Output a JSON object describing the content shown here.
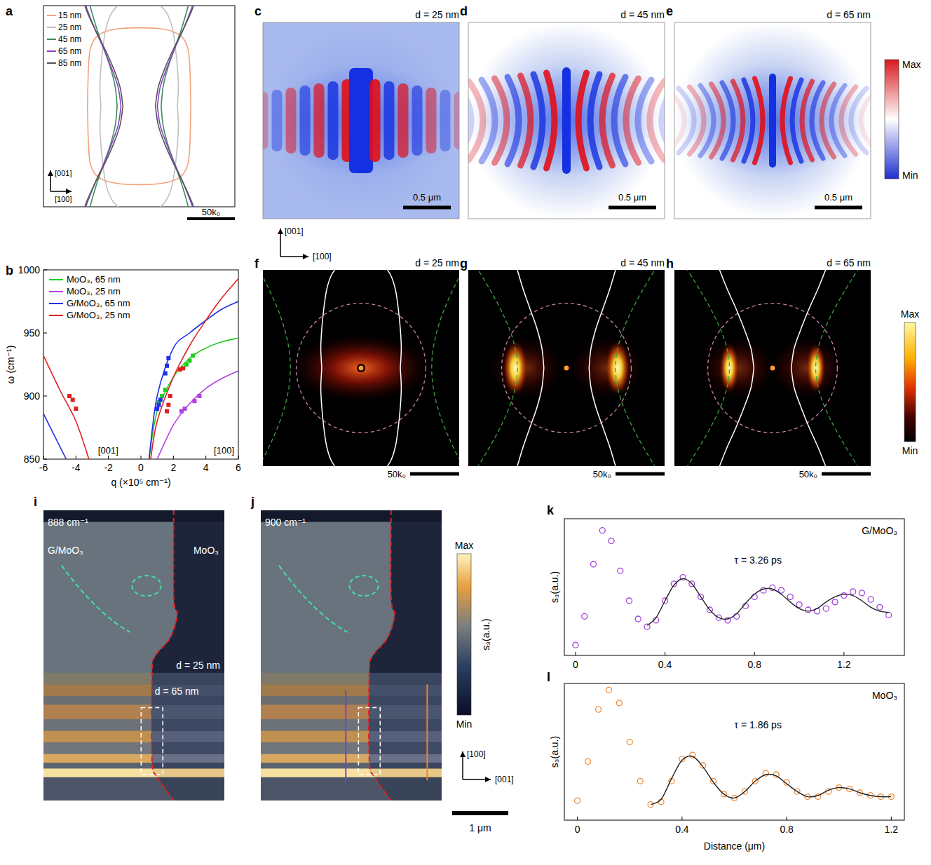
{
  "panels": {
    "a": {
      "letter": "a",
      "xlim": [
        -100,
        100
      ],
      "ylim": [
        -105,
        105
      ],
      "x_axis": "[100]",
      "y_axis": "[001]",
      "scale_bar": "50k₀",
      "curves": [
        {
          "name": "15 nm",
          "color": "#f4a27c",
          "kx": [
            0,
            20,
            35,
            45,
            51,
            53,
            54
          ],
          "kz": [
            82,
            81,
            78,
            72,
            60,
            40,
            0
          ]
        },
        {
          "name": "25 nm",
          "color": "#c0c0c0",
          "kx": [
            0,
            10,
            22,
            30,
            35,
            38,
            40,
            41,
            40
          ],
          "kz": [
            111,
            110,
            105,
            95,
            80,
            60,
            40,
            20,
            0
          ]
        },
        {
          "name": "45 nm",
          "color": "#3a8f5a",
          "kx": [
            23,
            25,
            30,
            37,
            44,
            50,
            54
          ],
          "kz": [
            0,
            20,
            40,
            60,
            80,
            100,
            115
          ]
        },
        {
          "name": "65 nm",
          "color": "#8a3fc8",
          "kx": [
            19,
            22,
            29,
            37,
            46,
            54,
            59
          ],
          "kz": [
            0,
            20,
            40,
            60,
            80,
            100,
            115
          ]
        },
        {
          "name": "85 nm",
          "color": "#555555",
          "kx": [
            17,
            20,
            27,
            36,
            46,
            55,
            60
          ],
          "kz": [
            0,
            20,
            40,
            60,
            80,
            100,
            115
          ]
        }
      ]
    },
    "c": {
      "letter": "c",
      "title": "d = 25 nm",
      "scale_bar": "0.5 μm"
    },
    "d": {
      "letter": "d",
      "title": "d = 45 nm",
      "scale_bar": "0.5 μm"
    },
    "e": {
      "letter": "e",
      "title": "d = 65 nm",
      "scale_bar": "0.5 μm"
    },
    "field_colorbar": {
      "max": "Max",
      "min": "Min"
    },
    "field_axes": {
      "up": "[001]",
      "right": "[100]"
    },
    "f": {
      "letter": "f",
      "title": "d = 25 nm",
      "scale_bar": "50k₀"
    },
    "g": {
      "letter": "g",
      "title": "d = 45 nm",
      "scale_bar": "50k₀"
    },
    "h": {
      "letter": "h",
      "title": "d = 65 nm",
      "scale_bar": "50k₀"
    },
    "fft_colorbar": {
      "max": "Max",
      "min": "Min"
    },
    "i": {
      "letter": "i",
      "frequency": "888 cm⁻¹",
      "left_label": "G/MoO₃",
      "right_label": "MoO₃",
      "thin_label": "d = 25 nm",
      "thick_label": "d = 65 nm"
    },
    "j": {
      "letter": "j",
      "frequency": "900 cm⁻¹"
    },
    "snom_colorbar": {
      "title": "s₃(a.u.)",
      "max": "Max",
      "min": "Min"
    },
    "image_axes": {
      "up": "[100]",
      "right": "[001]",
      "scale_bar": "1 μm"
    }
  },
  "chart_data": [
    {
      "panel": "b",
      "type": "line",
      "xlabel": "q (×10⁵ cm⁻¹)",
      "ylabel": "ω (cm⁻¹)",
      "xlim": [
        -6,
        6
      ],
      "ylim": [
        850,
        1000
      ],
      "xticks": [
        -6,
        -4,
        -2,
        0,
        2,
        4,
        6
      ],
      "yticks": [
        850,
        900,
        950,
        1000
      ],
      "legend": "upper left",
      "annotations": [
        "[001]",
        "[100]"
      ],
      "series": [
        {
          "name": "MoO₃, 65 nm",
          "type": "line",
          "line_style": "solid",
          "color": "#22cc22",
          "x": [
            0.5,
            1,
            2,
            3,
            4,
            5,
            6
          ],
          "values": [
            850,
            888,
            915,
            930,
            938,
            943,
            946
          ]
        },
        {
          "name": "MoO₃, 25 nm",
          "type": "line",
          "line_style": "solid",
          "color": "#b040e0",
          "x": [
            1,
            2,
            3,
            4,
            5,
            6
          ],
          "values": [
            850,
            877,
            894,
            906,
            914,
            920
          ]
        },
        {
          "name": "G/MoO₃, 65 nm",
          "type": "line",
          "line_style": "solid",
          "color": "#2030e8",
          "x": [
            -6,
            -5.3,
            -4.6,
            0,
            0.5,
            1,
            2,
            3,
            4,
            5,
            6
          ],
          "values": [
            886,
            868,
            850,
            null,
            850,
            900,
            938,
            950,
            960,
            969,
            975
          ]
        },
        {
          "name": "G/MoO₃, 25 nm",
          "type": "line",
          "line_style": "solid",
          "color": "#e02020",
          "x": [
            -6,
            -5,
            -4,
            -3.2,
            0,
            0.6,
            1,
            2,
            3,
            4,
            5,
            6
          ],
          "values": [
            932,
            905,
            880,
            850,
            null,
            850,
            880,
            915,
            940,
            960,
            978,
            993
          ]
        },
        {
          "type": "scatter",
          "marker": "square",
          "color": "#22cc22",
          "x": [
            1.1,
            1.3,
            1.5,
            2.8,
            3.0,
            3.2
          ],
          "values": [
            895,
            900,
            905,
            925,
            928,
            932
          ]
        },
        {
          "type": "scatter",
          "marker": "square",
          "color": "#b040e0",
          "x": [
            2.5,
            2.7,
            3.3,
            3.6
          ],
          "values": [
            888,
            890,
            896,
            900
          ]
        },
        {
          "type": "scatter",
          "marker": "square",
          "color": "#2030e8",
          "x": [
            1.0,
            1.1,
            1.2,
            1.5,
            1.6,
            1.7
          ],
          "values": [
            890,
            893,
            897,
            918,
            924,
            930
          ]
        },
        {
          "type": "scatter",
          "marker": "square",
          "color": "#e02020",
          "x": [
            -4.4,
            -4.2,
            -4.0,
            1.6,
            1.7,
            1.8,
            2.4,
            2.6
          ],
          "values": [
            900,
            897,
            890,
            888,
            893,
            900,
            921,
            922
          ]
        }
      ]
    },
    {
      "panel": "k",
      "type": "scatter",
      "title": "G/MoO₃",
      "ylabel": "s₃(a.u.)",
      "xlim": [
        -0.05,
        1.47
      ],
      "ylim": [
        0,
        1.05
      ],
      "xticks": [
        0,
        0.4,
        0.8,
        1.2
      ],
      "tick_labels": "x",
      "annotations": [
        "τ = 3.26 ps"
      ],
      "series": [
        {
          "type": "scatter",
          "marker": "circle",
          "color": "#a040e0",
          "x": [
            0,
            0.04,
            0.08,
            0.12,
            0.16,
            0.2,
            0.24,
            0.28,
            0.32,
            0.36,
            0.4,
            0.44,
            0.48,
            0.52,
            0.56,
            0.6,
            0.64,
            0.68,
            0.72,
            0.76,
            0.8,
            0.84,
            0.88,
            0.92,
            0.96,
            1,
            1.04,
            1.08,
            1.12,
            1.16,
            1.2,
            1.24,
            1.28,
            1.32,
            1.36,
            1.4
          ],
          "values": [
            0.08,
            0.3,
            0.7,
            0.96,
            0.88,
            0.65,
            0.42,
            0.28,
            0.22,
            0.27,
            0.42,
            0.55,
            0.6,
            0.55,
            0.45,
            0.35,
            0.29,
            0.27,
            0.3,
            0.38,
            0.45,
            0.5,
            0.52,
            0.5,
            0.45,
            0.39,
            0.35,
            0.34,
            0.36,
            0.41,
            0.46,
            0.49,
            0.48,
            0.43,
            0.37,
            0.31
          ]
        },
        {
          "type": "line",
          "line_style": "solid",
          "color": "#222222",
          "x": [
            0.32,
            0.36,
            0.4,
            0.44,
            0.48,
            0.52,
            0.56,
            0.6,
            0.64,
            0.68,
            0.72,
            0.76,
            0.8,
            0.84,
            0.88,
            0.92,
            0.96,
            1,
            1.04,
            1.08,
            1.12,
            1.16,
            1.2,
            1.24,
            1.28,
            1.32,
            1.36,
            1.4
          ],
          "values": [
            0.23,
            0.29,
            0.42,
            0.54,
            0.59,
            0.55,
            0.45,
            0.35,
            0.29,
            0.28,
            0.32,
            0.4,
            0.47,
            0.51,
            0.51,
            0.47,
            0.41,
            0.36,
            0.34,
            0.36,
            0.41,
            0.45,
            0.47,
            0.46,
            0.42,
            0.37,
            0.34,
            0.33
          ]
        }
      ]
    },
    {
      "panel": "l",
      "type": "scatter",
      "title": "MoO₃",
      "xlabel": "Distance (μm)",
      "ylabel": "s₃(a.u.)",
      "xlim": [
        -0.05,
        1.25
      ],
      "ylim": [
        0,
        1.05
      ],
      "xticks": [
        0,
        0.4,
        0.8,
        1.2
      ],
      "tick_labels": "x",
      "annotations": [
        "τ = 1.86 ps"
      ],
      "series": [
        {
          "type": "scatter",
          "marker": "circle",
          "color": "#f08a30",
          "x": [
            0,
            0.04,
            0.08,
            0.12,
            0.16,
            0.2,
            0.24,
            0.28,
            0.32,
            0.36,
            0.4,
            0.44,
            0.48,
            0.52,
            0.56,
            0.6,
            0.64,
            0.68,
            0.72,
            0.76,
            0.8,
            0.84,
            0.88,
            0.92,
            0.96,
            1,
            1.04,
            1.08,
            1.12,
            1.16,
            1.2
          ],
          "values": [
            0.15,
            0.45,
            0.85,
            1.0,
            0.9,
            0.6,
            0.3,
            0.12,
            0.14,
            0.3,
            0.47,
            0.5,
            0.42,
            0.3,
            0.2,
            0.17,
            0.22,
            0.3,
            0.36,
            0.35,
            0.29,
            0.22,
            0.18,
            0.18,
            0.22,
            0.25,
            0.24,
            0.21,
            0.19,
            0.18,
            0.18
          ]
        },
        {
          "type": "line",
          "line_style": "solid",
          "color": "#222222",
          "x": [
            0.28,
            0.32,
            0.36,
            0.4,
            0.44,
            0.48,
            0.52,
            0.56,
            0.6,
            0.64,
            0.68,
            0.72,
            0.76,
            0.8,
            0.84,
            0.88,
            0.92,
            0.96,
            1,
            1.04,
            1.08,
            1.12,
            1.16,
            1.2
          ],
          "values": [
            0.12,
            0.16,
            0.32,
            0.46,
            0.49,
            0.41,
            0.29,
            0.2,
            0.17,
            0.22,
            0.3,
            0.35,
            0.34,
            0.28,
            0.22,
            0.18,
            0.19,
            0.23,
            0.25,
            0.24,
            0.21,
            0.19,
            0.18,
            0.18
          ]
        }
      ]
    }
  ]
}
